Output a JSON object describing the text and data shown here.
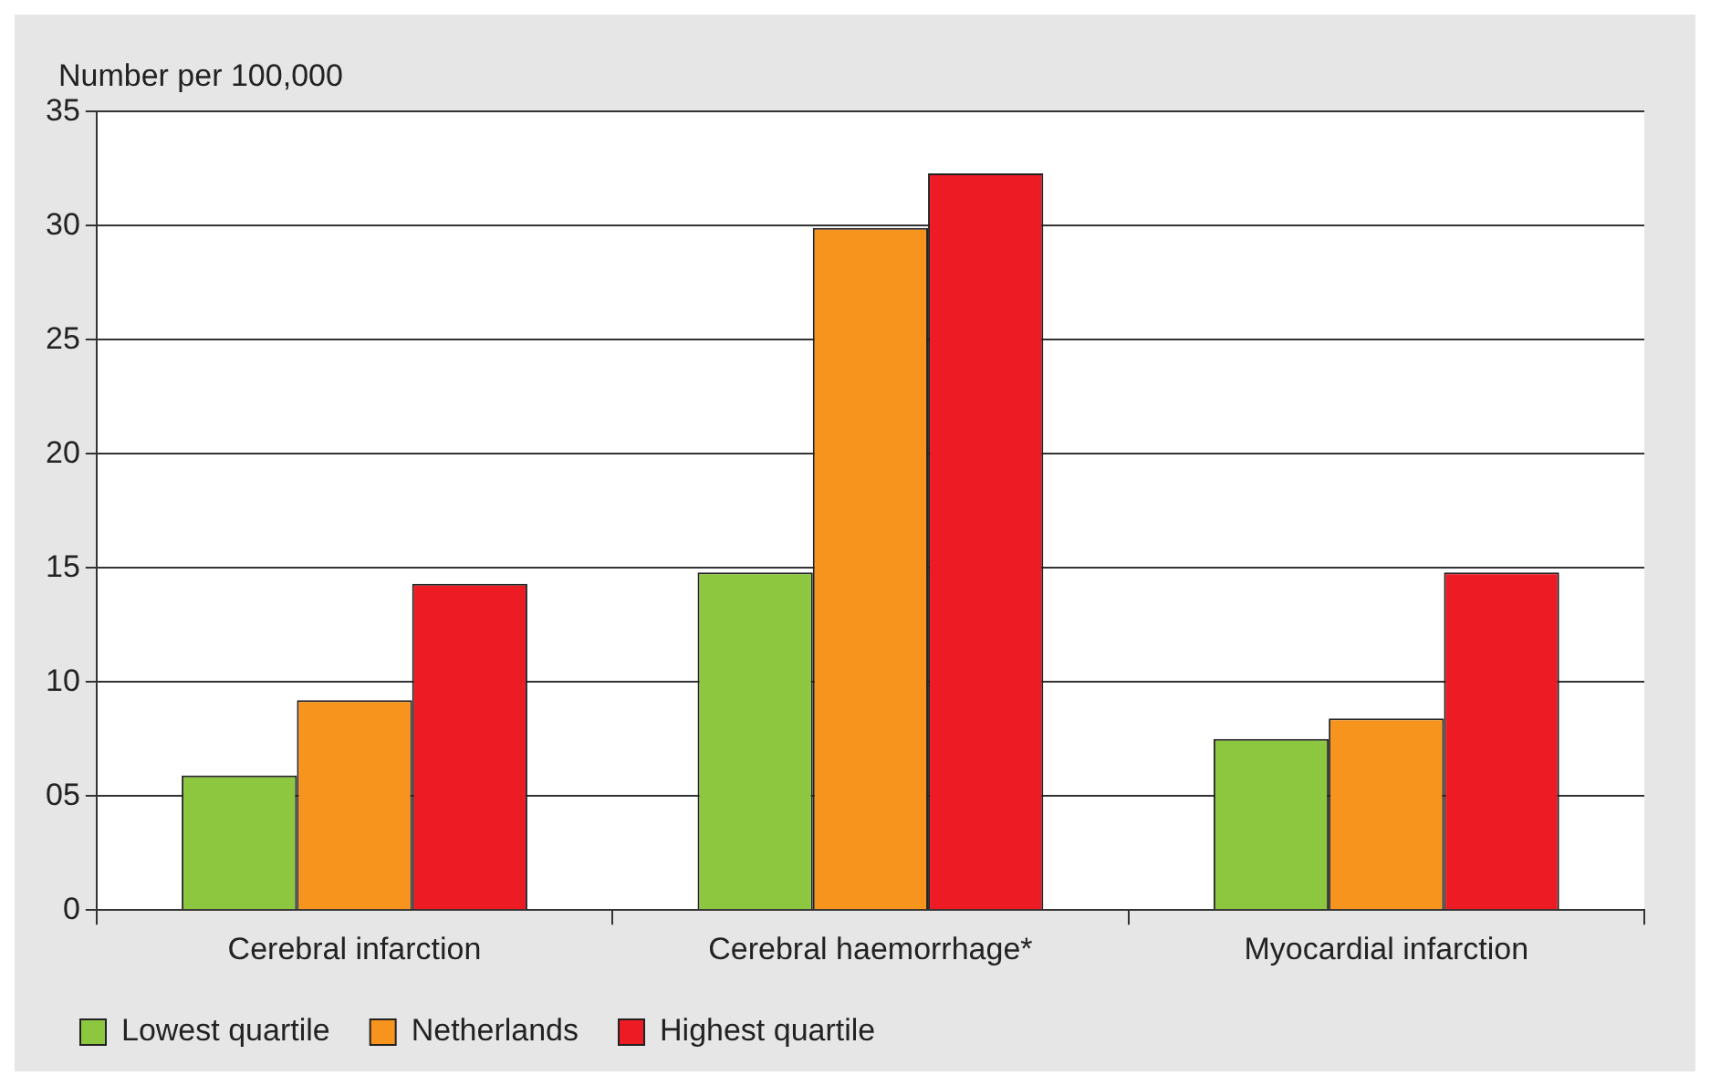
{
  "chart_data": {
    "type": "bar",
    "ylabel": "Number per 100,000",
    "categories": [
      "Cerebral infarction",
      "Cerebral haemorrhage*",
      "Myocardial infarction"
    ],
    "series": [
      {
        "name": "Lowest quartile",
        "color": "#8dc63f",
        "values": [
          5.9,
          14.8,
          7.5
        ]
      },
      {
        "name": "Netherlands",
        "color": "#f7941d",
        "values": [
          9.2,
          29.9,
          8.4
        ]
      },
      {
        "name": "Highest quartile",
        "color": "#ed1c24",
        "values": [
          14.3,
          32.3,
          14.8
        ]
      }
    ],
    "ylim": [
      0,
      35
    ],
    "yticks": [
      0,
      {
        "value": 5,
        "label": "05"
      },
      10,
      15,
      20,
      25,
      30,
      35
    ],
    "grid": "y",
    "legend": "bottom left"
  }
}
